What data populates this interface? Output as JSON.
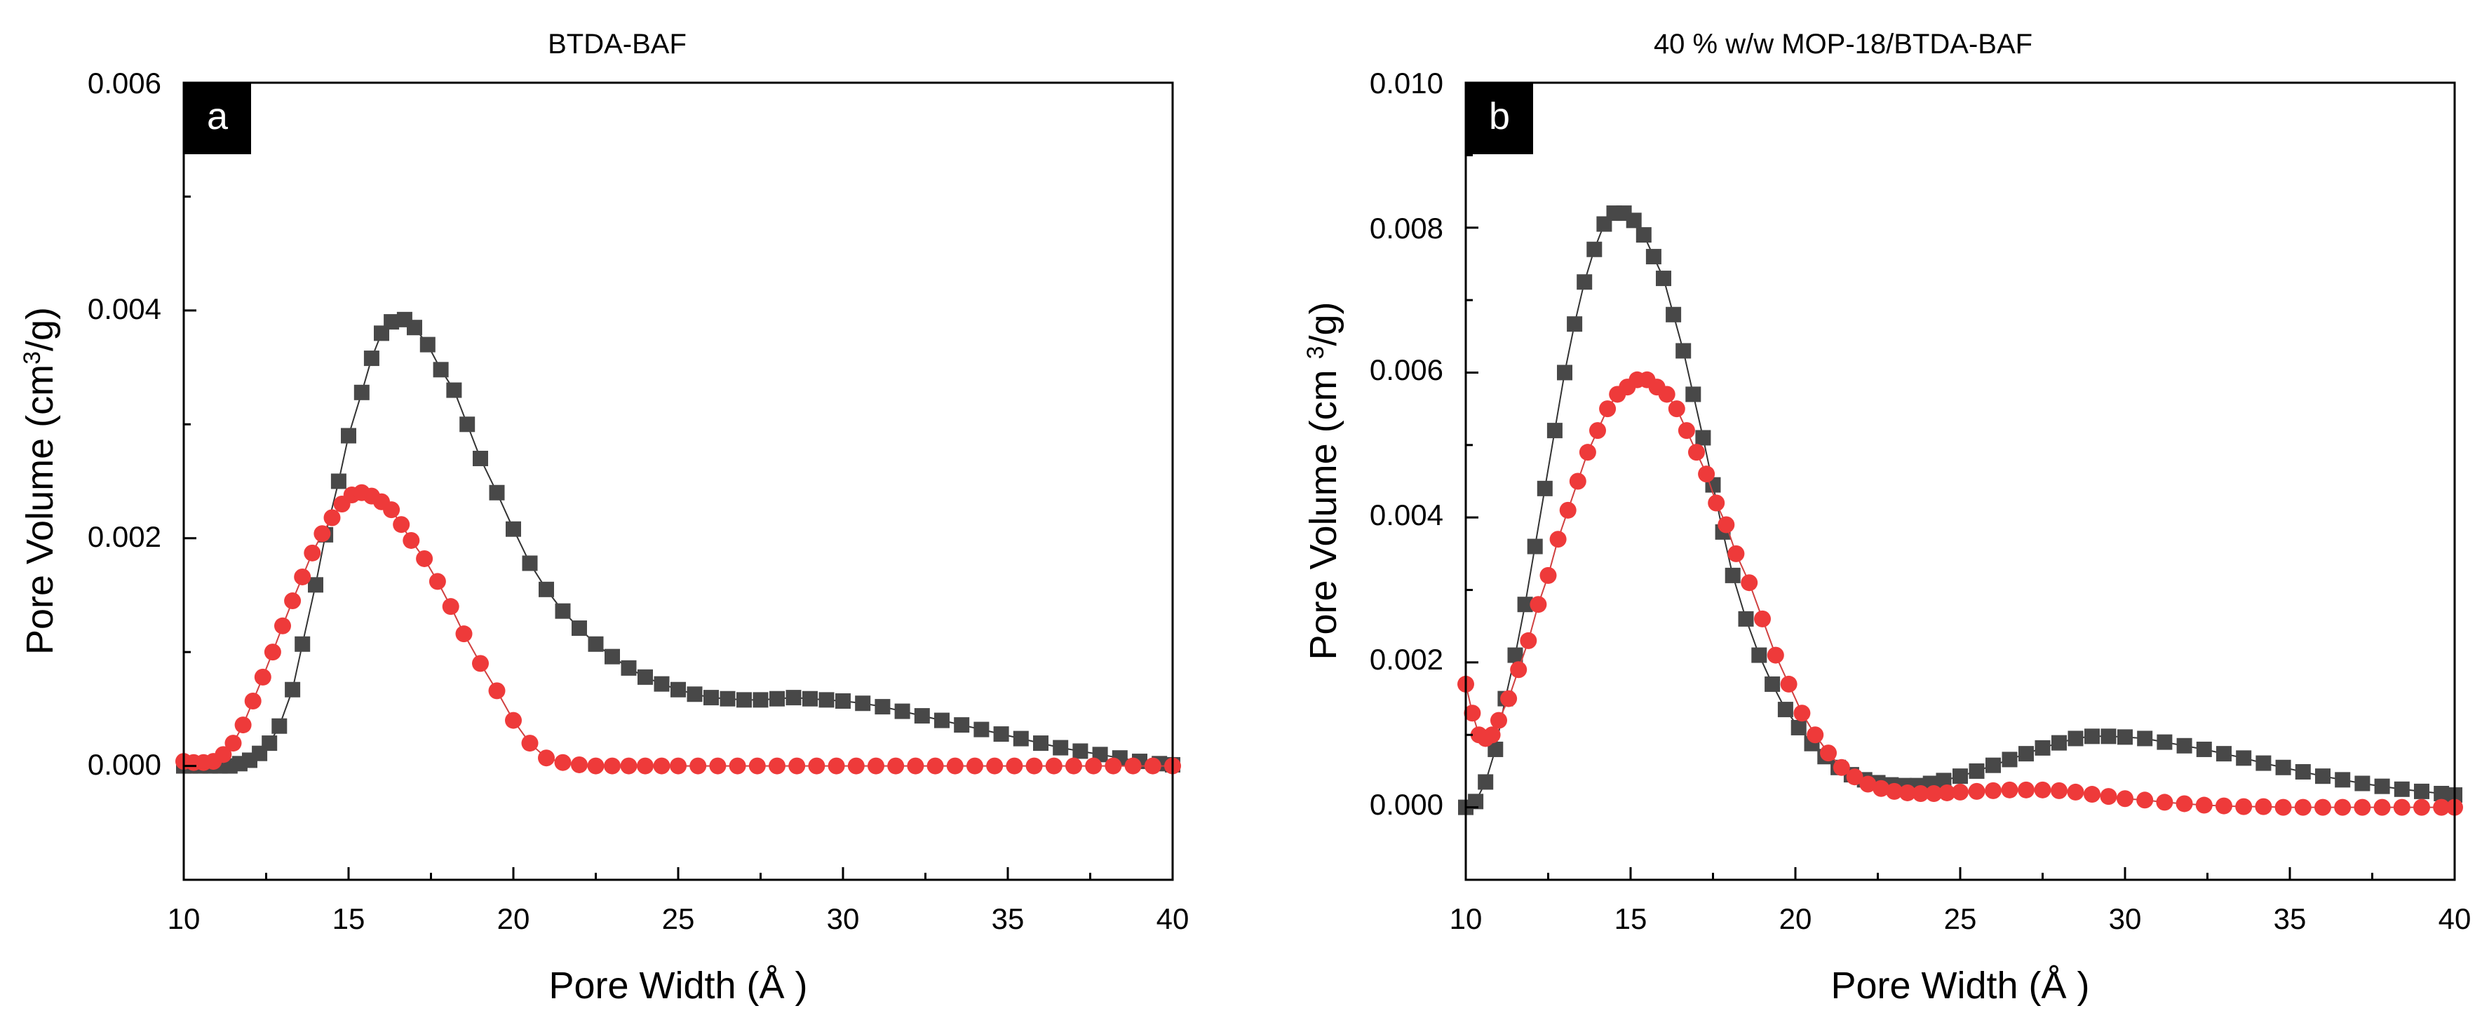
{
  "chart_data": [
    {
      "type": "scatter",
      "title": "BTDA-BAF",
      "panel_label": "a",
      "xlabel": "Pore Width (Å )",
      "ylabel_pre": "Pore Volume (cm",
      "ylabel_sup": "3",
      "ylabel_post": "/g)",
      "xlim": [
        10,
        40
      ],
      "ylim": [
        -0.001,
        0.006
      ],
      "xticks": [
        10,
        15,
        20,
        25,
        30,
        35,
        40
      ],
      "yticks": [
        0.0,
        0.002,
        0.004,
        0.006
      ],
      "xtick_labels": [
        "10",
        "15",
        "20",
        "25",
        "30",
        "35",
        "40"
      ],
      "ytick_labels": [
        "0.000",
        "0.002",
        "0.004",
        "0.006"
      ],
      "series": [
        {
          "name": "series 1 (squares)",
          "marker": "square",
          "color": "#484848",
          "x": [
            10.0,
            10.2,
            10.5,
            10.8,
            11.1,
            11.4,
            11.7,
            12.0,
            12.3,
            12.6,
            12.9,
            13.3,
            13.6,
            14.0,
            14.3,
            14.7,
            15.0,
            15.4,
            15.7,
            16.0,
            16.3,
            16.7,
            17.0,
            17.4,
            17.8,
            18.2,
            18.6,
            19.0,
            19.5,
            20.0,
            20.5,
            21.0,
            21.5,
            22.0,
            22.5,
            23.0,
            23.5,
            24.0,
            24.5,
            25.0,
            25.5,
            26.0,
            26.5,
            27.0,
            27.5,
            28.0,
            28.5,
            29.0,
            29.5,
            30.0,
            30.6,
            31.2,
            31.8,
            32.4,
            33.0,
            33.6,
            34.2,
            34.8,
            35.4,
            36.0,
            36.6,
            37.2,
            37.8,
            38.4,
            39.0,
            39.6,
            40.0
          ],
          "y": [
            0.0,
            0.0,
            0.0,
            0.0,
            0.0,
            0.0,
            2e-05,
            5e-05,
            0.00011,
            0.0002,
            0.00035,
            0.00067,
            0.00107,
            0.00159,
            0.00203,
            0.0025,
            0.0029,
            0.00328,
            0.00358,
            0.0038,
            0.0039,
            0.00392,
            0.00385,
            0.0037,
            0.00348,
            0.0033,
            0.003,
            0.0027,
            0.0024,
            0.00208,
            0.00178,
            0.00155,
            0.00136,
            0.00121,
            0.00107,
            0.00096,
            0.00086,
            0.00078,
            0.00072,
            0.00067,
            0.00063,
            0.0006,
            0.00059,
            0.00058,
            0.00058,
            0.00059,
            0.0006,
            0.00059,
            0.00058,
            0.00057,
            0.00055,
            0.00052,
            0.00048,
            0.00044,
            0.0004,
            0.00036,
            0.00032,
            0.00028,
            0.00024,
            0.0002,
            0.00016,
            0.00013,
            0.0001,
            7e-05,
            4e-05,
            2e-05,
            1e-05
          ]
        },
        {
          "name": "series 2 (circles)",
          "marker": "circle",
          "color": "#ee3a3a",
          "x": [
            10.0,
            10.3,
            10.6,
            10.9,
            11.2,
            11.5,
            11.8,
            12.1,
            12.4,
            12.7,
            13.0,
            13.3,
            13.6,
            13.9,
            14.2,
            14.5,
            14.8,
            15.1,
            15.4,
            15.7,
            16.0,
            16.3,
            16.6,
            16.9,
            17.3,
            17.7,
            18.1,
            18.5,
            19.0,
            19.5,
            20.0,
            20.5,
            21.0,
            21.5,
            22.0,
            22.5,
            23.0,
            23.5,
            24.0,
            24.5,
            25.0,
            25.6,
            26.2,
            26.8,
            27.4,
            28.0,
            28.6,
            29.2,
            29.8,
            30.4,
            31.0,
            31.6,
            32.2,
            32.8,
            33.4,
            34.0,
            34.6,
            35.2,
            35.8,
            36.4,
            37.0,
            37.6,
            38.2,
            38.8,
            39.4,
            40.0
          ],
          "y": [
            4e-05,
            3e-05,
            3e-05,
            4e-05,
            0.0001,
            0.0002,
            0.00036,
            0.00057,
            0.00078,
            0.001,
            0.00123,
            0.00145,
            0.00166,
            0.00187,
            0.00204,
            0.00218,
            0.0023,
            0.00238,
            0.0024,
            0.00237,
            0.00232,
            0.00225,
            0.00212,
            0.00198,
            0.00182,
            0.00162,
            0.0014,
            0.00116,
            0.0009,
            0.00066,
            0.0004,
            0.0002,
            7e-05,
            3e-05,
            1e-05,
            0.0,
            0.0,
            0.0,
            0.0,
            0.0,
            0.0,
            0.0,
            0.0,
            0.0,
            0.0,
            0.0,
            0.0,
            0.0,
            0.0,
            0.0,
            0.0,
            0.0,
            0.0,
            0.0,
            0.0,
            0.0,
            0.0,
            0.0,
            0.0,
            0.0,
            0.0,
            0.0,
            0.0,
            0.0,
            0.0,
            0.0
          ]
        }
      ]
    },
    {
      "type": "scatter",
      "title": "40 % w/w MOP-18/BTDA-BAF",
      "panel_label": "b",
      "xlabel": "Pore Width (Å )",
      "ylabel_pre": "Pore Volume (cm ",
      "ylabel_sup": "3",
      "ylabel_post": "/g)",
      "xlim": [
        10,
        40
      ],
      "ylim": [
        -0.001,
        0.01
      ],
      "xticks": [
        10,
        15,
        20,
        25,
        30,
        35,
        40
      ],
      "yticks": [
        0.0,
        0.002,
        0.004,
        0.006,
        0.008,
        0.01
      ],
      "xtick_labels": [
        "10",
        "15",
        "20",
        "25",
        "30",
        "35",
        "40"
      ],
      "ytick_labels": [
        "0.000",
        "0.002",
        "0.004",
        "0.006",
        "0.008",
        "0.010"
      ],
      "series": [
        {
          "name": "series 1 (squares)",
          "marker": "square",
          "color": "#484848",
          "x": [
            10.0,
            10.3,
            10.6,
            10.9,
            11.2,
            11.5,
            11.8,
            12.1,
            12.4,
            12.7,
            13.0,
            13.3,
            13.6,
            13.9,
            14.2,
            14.5,
            14.8,
            15.1,
            15.4,
            15.7,
            16.0,
            16.3,
            16.6,
            16.9,
            17.2,
            17.5,
            17.8,
            18.1,
            18.5,
            18.9,
            19.3,
            19.7,
            20.1,
            20.5,
            20.9,
            21.3,
            21.7,
            22.1,
            22.5,
            22.9,
            23.3,
            23.7,
            24.1,
            24.5,
            25.0,
            25.5,
            26.0,
            26.5,
            27.0,
            27.5,
            28.0,
            28.5,
            29.0,
            29.5,
            30.0,
            30.6,
            31.2,
            31.8,
            32.4,
            33.0,
            33.6,
            34.2,
            34.8,
            35.4,
            36.0,
            36.6,
            37.2,
            37.8,
            38.4,
            39.0,
            39.6,
            40.0
          ],
          "y": [
            0.0,
            8e-05,
            0.00035,
            0.0008,
            0.0015,
            0.0021,
            0.0028,
            0.0036,
            0.0044,
            0.0052,
            0.006,
            0.00667,
            0.00725,
            0.0077,
            0.00805,
            0.0082,
            0.0082,
            0.0081,
            0.0079,
            0.0076,
            0.0073,
            0.0068,
            0.0063,
            0.0057,
            0.0051,
            0.00445,
            0.0038,
            0.0032,
            0.0026,
            0.0021,
            0.0017,
            0.00135,
            0.0011,
            0.00088,
            0.0007,
            0.00055,
            0.00045,
            0.00038,
            0.00034,
            0.00031,
            0.0003,
            0.0003,
            0.00033,
            0.00037,
            0.00043,
            0.0005,
            0.00058,
            0.00066,
            0.00074,
            0.00082,
            0.00089,
            0.00095,
            0.00098,
            0.00098,
            0.00097,
            0.00095,
            0.0009,
            0.00085,
            0.0008,
            0.00074,
            0.00068,
            0.00061,
            0.00055,
            0.00049,
            0.00043,
            0.00038,
            0.00033,
            0.00029,
            0.00025,
            0.00022,
            0.00019,
            0.00017
          ]
        },
        {
          "name": "series 2 (circles)",
          "marker": "circle",
          "color": "#ee3a3a",
          "x": [
            10.0,
            10.2,
            10.4,
            10.6,
            10.8,
            11.0,
            11.3,
            11.6,
            11.9,
            12.2,
            12.5,
            12.8,
            13.1,
            13.4,
            13.7,
            14.0,
            14.3,
            14.6,
            14.9,
            15.2,
            15.5,
            15.8,
            16.1,
            16.4,
            16.7,
            17.0,
            17.3,
            17.6,
            17.9,
            18.2,
            18.6,
            19.0,
            19.4,
            19.8,
            20.2,
            20.6,
            21.0,
            21.4,
            21.8,
            22.2,
            22.6,
            23.0,
            23.4,
            23.8,
            24.2,
            24.6,
            25.0,
            25.5,
            26.0,
            26.5,
            27.0,
            27.5,
            28.0,
            28.5,
            29.0,
            29.5,
            30.0,
            30.6,
            31.2,
            31.8,
            32.4,
            33.0,
            33.6,
            34.2,
            34.8,
            35.4,
            36.0,
            36.6,
            37.2,
            37.8,
            38.4,
            39.0,
            39.6,
            40.0
          ],
          "y": [
            0.0017,
            0.0013,
            0.001,
            0.00095,
            0.001,
            0.0012,
            0.0015,
            0.0019,
            0.0023,
            0.0028,
            0.0032,
            0.0037,
            0.0041,
            0.0045,
            0.0049,
            0.0052,
            0.0055,
            0.0057,
            0.0058,
            0.0059,
            0.0059,
            0.0058,
            0.0057,
            0.0055,
            0.0052,
            0.0049,
            0.0046,
            0.0042,
            0.0039,
            0.0035,
            0.0031,
            0.0026,
            0.0021,
            0.0017,
            0.0013,
            0.001,
            0.00075,
            0.00055,
            0.00042,
            0.00032,
            0.00026,
            0.00022,
            0.0002,
            0.00019,
            0.00019,
            0.0002,
            0.00021,
            0.00022,
            0.00023,
            0.00024,
            0.00024,
            0.00024,
            0.00023,
            0.00021,
            0.00018,
            0.00015,
            0.00012,
            0.0001,
            7e-05,
            5e-05,
            3e-05,
            2e-05,
            1e-05,
            1e-05,
            0.0,
            0.0,
            0.0,
            0.0,
            0.0,
            0.0,
            0.0,
            0.0,
            0.0,
            0.0
          ]
        }
      ]
    }
  ]
}
